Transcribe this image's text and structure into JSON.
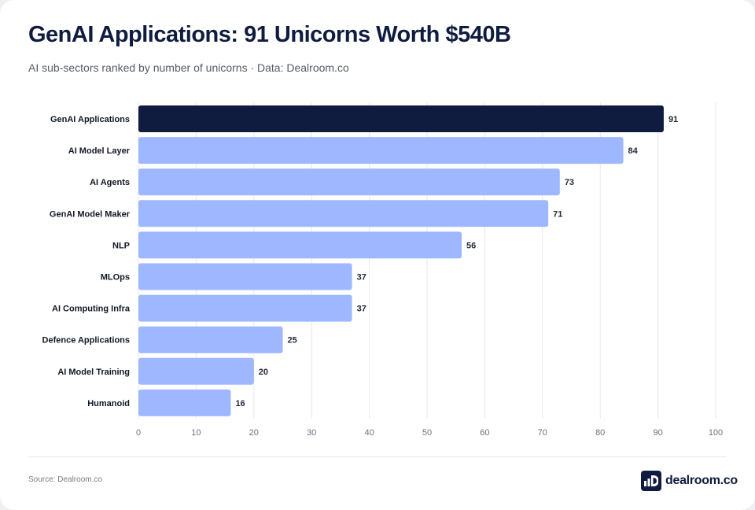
{
  "header": {
    "title": "GenAI Applications: 91 Unicorns Worth $540B",
    "subtitle": "AI sub-sectors ranked by number of unicorns · Data: Dealroom.co"
  },
  "footer": {
    "source": "Source: Dealroom.co",
    "logo_text": "dealroom.co"
  },
  "colors": {
    "highlight": "#0f1c3f",
    "bar": "#9eb7ff",
    "grid": "#e5e7eb"
  },
  "chart_data": {
    "type": "bar",
    "orientation": "horizontal",
    "title": "GenAI Applications: 91 Unicorns Worth $540B",
    "subtitle": "AI sub-sectors ranked by number of unicorns · Data: Dealroom.co",
    "xlabel": "",
    "ylabel": "",
    "xlim": [
      0,
      100
    ],
    "xticks": [
      0,
      10,
      20,
      30,
      40,
      50,
      60,
      70,
      80,
      90,
      100
    ],
    "grid": true,
    "categories": [
      "GenAI Applications",
      "AI Model Layer",
      "AI Agents",
      "GenAI Model Maker",
      "NLP",
      "MLOps",
      "AI Computing Infra",
      "Defence Applications",
      "AI Model Training",
      "Humanoid"
    ],
    "values": [
      91,
      84,
      73,
      71,
      56,
      37,
      37,
      25,
      20,
      16
    ],
    "highlight_category": "GenAI Applications"
  }
}
